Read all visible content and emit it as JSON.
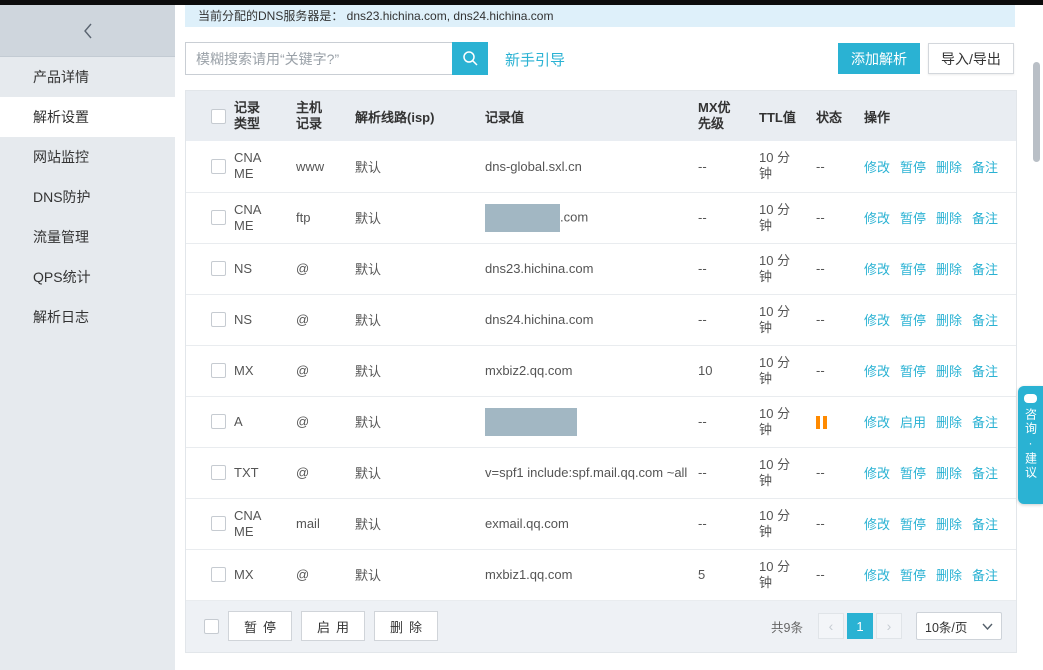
{
  "notice": {
    "text": "当前分配的DNS服务器是： dns23.hichina.com, dns24.hichina.com"
  },
  "sidebar": {
    "items": [
      {
        "label": "产品详情",
        "active": false
      },
      {
        "label": "解析设置",
        "active": true
      },
      {
        "label": "网站监控",
        "active": false
      },
      {
        "label": "DNS防护",
        "active": false
      },
      {
        "label": "流量管理",
        "active": false
      },
      {
        "label": "QPS统计",
        "active": false
      },
      {
        "label": "解析日志",
        "active": false
      }
    ]
  },
  "toolbar": {
    "search_placeholder": "模糊搜索请用“关键字?”",
    "guide_link": "新手引导",
    "add_button": "添加解析",
    "import_export_button": "导入/导出"
  },
  "table": {
    "headers": [
      "记录类型",
      "主机记录",
      "解析线路(isp)",
      "记录值",
      "MX优先级",
      "TTL值",
      "状态",
      "操作"
    ],
    "rows": [
      {
        "type": "CNAME",
        "host": "www",
        "line": "默认",
        "value": "dns-global.sxl.cn",
        "redacted": false,
        "redact_width": 0,
        "value_suffix": "",
        "mx": "--",
        "ttl": "10 分钟",
        "status": "--",
        "actions": [
          "修改",
          "暂停",
          "删除",
          "备注"
        ]
      },
      {
        "type": "CNAME",
        "host": "ftp",
        "line": "默认",
        "value": "",
        "redacted": true,
        "redact_width": 75,
        "value_suffix": ".com",
        "mx": "--",
        "ttl": "10 分钟",
        "status": "--",
        "actions": [
          "修改",
          "暂停",
          "删除",
          "备注"
        ]
      },
      {
        "type": "NS",
        "host": "@",
        "line": "默认",
        "value": "dns23.hichina.com",
        "redacted": false,
        "redact_width": 0,
        "value_suffix": "",
        "mx": "--",
        "ttl": "10 分钟",
        "status": "--",
        "actions": [
          "修改",
          "暂停",
          "删除",
          "备注"
        ]
      },
      {
        "type": "NS",
        "host": "@",
        "line": "默认",
        "value": "dns24.hichina.com",
        "redacted": false,
        "redact_width": 0,
        "value_suffix": "",
        "mx": "--",
        "ttl": "10 分钟",
        "status": "--",
        "actions": [
          "修改",
          "暂停",
          "删除",
          "备注"
        ]
      },
      {
        "type": "MX",
        "host": "@",
        "line": "默认",
        "value": "mxbiz2.qq.com",
        "redacted": false,
        "redact_width": 0,
        "value_suffix": "",
        "mx": "10",
        "ttl": "10 分钟",
        "status": "--",
        "actions": [
          "修改",
          "暂停",
          "删除",
          "备注"
        ]
      },
      {
        "type": "A",
        "host": "@",
        "line": "默认",
        "value": "",
        "redacted": true,
        "redact_width": 92,
        "value_suffix": "",
        "mx": "--",
        "ttl": "10 分钟",
        "status": "paused",
        "actions": [
          "修改",
          "启用",
          "删除",
          "备注"
        ]
      },
      {
        "type": "TXT",
        "host": "@",
        "line": "默认",
        "value": "v=spf1 include:spf.mail.qq.com ~all",
        "redacted": false,
        "redact_width": 0,
        "value_suffix": "",
        "mx": "--",
        "ttl": "10 分钟",
        "status": "--",
        "actions": [
          "修改",
          "暂停",
          "删除",
          "备注"
        ]
      },
      {
        "type": "CNAME",
        "host": "mail",
        "line": "默认",
        "value": "exmail.qq.com",
        "redacted": false,
        "redact_width": 0,
        "value_suffix": "",
        "mx": "--",
        "ttl": "10 分钟",
        "status": "--",
        "actions": [
          "修改",
          "暂停",
          "删除",
          "备注"
        ]
      },
      {
        "type": "MX",
        "host": "@",
        "line": "默认",
        "value": "mxbiz1.qq.com",
        "redacted": false,
        "redact_width": 0,
        "value_suffix": "",
        "mx": "5",
        "ttl": "10 分钟",
        "status": "--",
        "actions": [
          "修改",
          "暂停",
          "删除",
          "备注"
        ]
      }
    ]
  },
  "footer": {
    "bulk_buttons": [
      "暂停",
      "启用",
      "删除"
    ],
    "total": "共9条",
    "prev": "‹",
    "page": "1",
    "next": "›",
    "page_size": "10条/页"
  },
  "widget": {
    "label": "咨询·建议"
  },
  "colors": {
    "accent": "#2ab2d3",
    "paused_icon": "#ff8a00",
    "notice_bg": "#def0fa",
    "redact_box": "#a2b7c3"
  }
}
